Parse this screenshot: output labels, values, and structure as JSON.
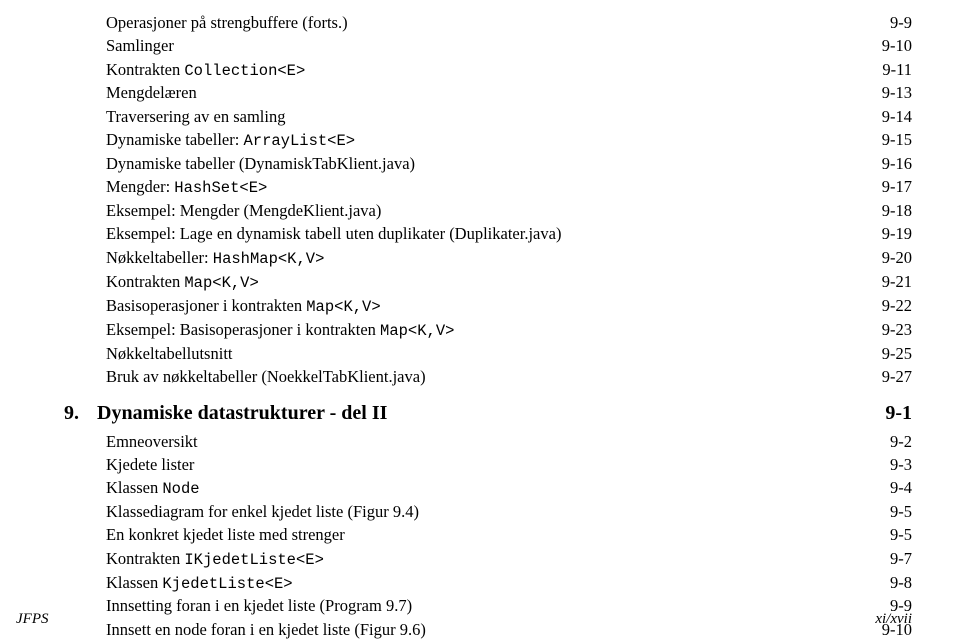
{
  "section1": [
    {
      "label": "Operasjoner på strengbuffere (forts.)",
      "page": "9-9"
    },
    {
      "label": "Samlinger",
      "page": "9-10"
    },
    {
      "label_pre": "Kontrakten ",
      "mono": "Collection<E>",
      "page": "9-11"
    },
    {
      "label": "Mengdelæren",
      "page": "9-13"
    },
    {
      "label": "Traversering av en samling",
      "page": "9-14"
    },
    {
      "label_pre": "Dynamiske tabeller: ",
      "mono": "ArrayList<E>",
      "page": "9-15"
    },
    {
      "label": "Dynamiske tabeller (DynamiskTabKlient.java)",
      "page": "9-16"
    },
    {
      "label_pre": "Mengder: ",
      "mono": "HashSet<E>",
      "page": "9-17"
    },
    {
      "label": "Eksempel: Mengder (MengdeKlient.java)",
      "page": "9-18"
    },
    {
      "label": "Eksempel: Lage en dynamisk tabell uten duplikater (Duplikater.java)",
      "page": "9-19"
    },
    {
      "label_pre": "Nøkkeltabeller: ",
      "mono": "HashMap<K,V>",
      "page": "9-20"
    },
    {
      "label_pre": "Kontrakten ",
      "mono": "Map<K,V>",
      "page": "9-21"
    },
    {
      "label_pre": "Basisoperasjoner i kontrakten ",
      "mono": "Map<K,V>",
      "page": "9-22"
    },
    {
      "label_pre": "Eksempel: Basisoperasjoner i kontrakten ",
      "mono": "Map<K,V>",
      "page": "9-23"
    },
    {
      "label": "Nøkkeltabellutsnitt",
      "page": "9-25"
    },
    {
      "label": "Bruk av nøkkeltabeller (NoekkelTabKlient.java)",
      "page": "9-27"
    }
  ],
  "chapter": {
    "num": "9.",
    "title": "Dynamiske datastrukturer - del II",
    "page": "9-1"
  },
  "section2": [
    {
      "label": "Emneoversikt",
      "page": "9-2"
    },
    {
      "label": "Kjedete lister",
      "page": "9-3"
    },
    {
      "label_pre": "Klassen ",
      "mono": "Node",
      "page": "9-4"
    },
    {
      "label": "Klassediagram for enkel kjedet liste (Figur 9.4)",
      "page": "9-5"
    },
    {
      "label": "En konkret kjedet liste med strenger",
      "page": "9-5"
    },
    {
      "label_pre": "Kontrakten ",
      "mono": "IKjedetListe<E>",
      "page": "9-7"
    },
    {
      "label_pre": "Klassen ",
      "mono": "KjedetListe<E>",
      "page": "9-8"
    },
    {
      "label": "Innsetting foran i en kjedet liste (Program 9.7)",
      "page": "9-9"
    },
    {
      "label": "Innsett en node foran i en kjedet liste (Figur 9.6)",
      "page": "9-10"
    }
  ],
  "footer": {
    "left": "JFPS",
    "right": "xi/xvii"
  }
}
